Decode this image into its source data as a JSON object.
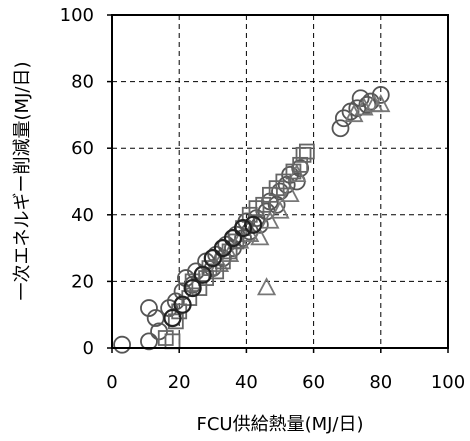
{
  "chart_data": {
    "type": "scatter",
    "title": "",
    "xlabel": "FCU供給熱量(MJ/日)",
    "ylabel": "一次エネルギー削減量(MJ/日)",
    "xlim": [
      0,
      100
    ],
    "ylim": [
      0,
      100
    ],
    "xticks": [
      "0",
      "20",
      "40",
      "60",
      "80",
      "100"
    ],
    "yticks": [
      "0",
      "20",
      "40",
      "60",
      "80",
      "100"
    ],
    "grid": "dashed",
    "legend": "none",
    "colors": {
      "circle": "#555555",
      "triangle": "#777777",
      "square": "#666666",
      "dark": "#222222"
    },
    "series": [
      {
        "marker": "circle",
        "points": [
          [
            3,
            1
          ],
          [
            11,
            2
          ],
          [
            11,
            12
          ],
          [
            13,
            9
          ],
          [
            14,
            5
          ],
          [
            17,
            12
          ],
          [
            19,
            14
          ],
          [
            21,
            17
          ],
          [
            22,
            21
          ],
          [
            24,
            19
          ],
          [
            25,
            23
          ],
          [
            27,
            22
          ],
          [
            28,
            26
          ],
          [
            30,
            24
          ],
          [
            31,
            28
          ],
          [
            33,
            27
          ],
          [
            34,
            31
          ],
          [
            36,
            30
          ],
          [
            37,
            34
          ],
          [
            39,
            33
          ],
          [
            40,
            38
          ],
          [
            41,
            35
          ],
          [
            43,
            39
          ],
          [
            44,
            37
          ],
          [
            46,
            41
          ],
          [
            47,
            44
          ],
          [
            49,
            43
          ],
          [
            50,
            47
          ],
          [
            52,
            49
          ],
          [
            53,
            52
          ],
          [
            55,
            50
          ],
          [
            56,
            54
          ],
          [
            68,
            66
          ],
          [
            69,
            69
          ],
          [
            71,
            71
          ],
          [
            73,
            72
          ],
          [
            74,
            75
          ],
          [
            76,
            73
          ],
          [
            77,
            74
          ],
          [
            80,
            76
          ]
        ]
      },
      {
        "marker": "triangle",
        "points": [
          [
            32,
            25
          ],
          [
            35,
            28
          ],
          [
            38,
            32
          ],
          [
            41,
            34
          ],
          [
            44,
            33
          ],
          [
            46,
            18
          ],
          [
            47,
            38
          ],
          [
            50,
            41
          ],
          [
            53,
            46
          ],
          [
            55,
            52
          ],
          [
            72,
            70
          ],
          [
            75,
            72
          ],
          [
            78,
            73
          ],
          [
            80,
            73
          ]
        ]
      },
      {
        "marker": "square",
        "points": [
          [
            16,
            3
          ],
          [
            18,
            2
          ],
          [
            19,
            8
          ],
          [
            20,
            11
          ],
          [
            23,
            15
          ],
          [
            24,
            20
          ],
          [
            26,
            18
          ],
          [
            28,
            21
          ],
          [
            29,
            24
          ],
          [
            31,
            23
          ],
          [
            33,
            26
          ],
          [
            35,
            29
          ],
          [
            37,
            32
          ],
          [
            39,
            36
          ],
          [
            41,
            40
          ],
          [
            43,
            42
          ],
          [
            45,
            43
          ],
          [
            47,
            46
          ],
          [
            49,
            48
          ],
          [
            51,
            50
          ],
          [
            54,
            53
          ],
          [
            56,
            55
          ],
          [
            57,
            58
          ],
          [
            58,
            59
          ]
        ]
      },
      {
        "marker": "circle-dark",
        "points": [
          [
            18,
            9
          ],
          [
            21,
            13
          ],
          [
            24,
            18
          ],
          [
            27,
            22
          ],
          [
            30,
            27
          ],
          [
            33,
            30
          ],
          [
            36,
            33
          ],
          [
            39,
            36
          ],
          [
            42,
            37
          ]
        ]
      }
    ]
  }
}
